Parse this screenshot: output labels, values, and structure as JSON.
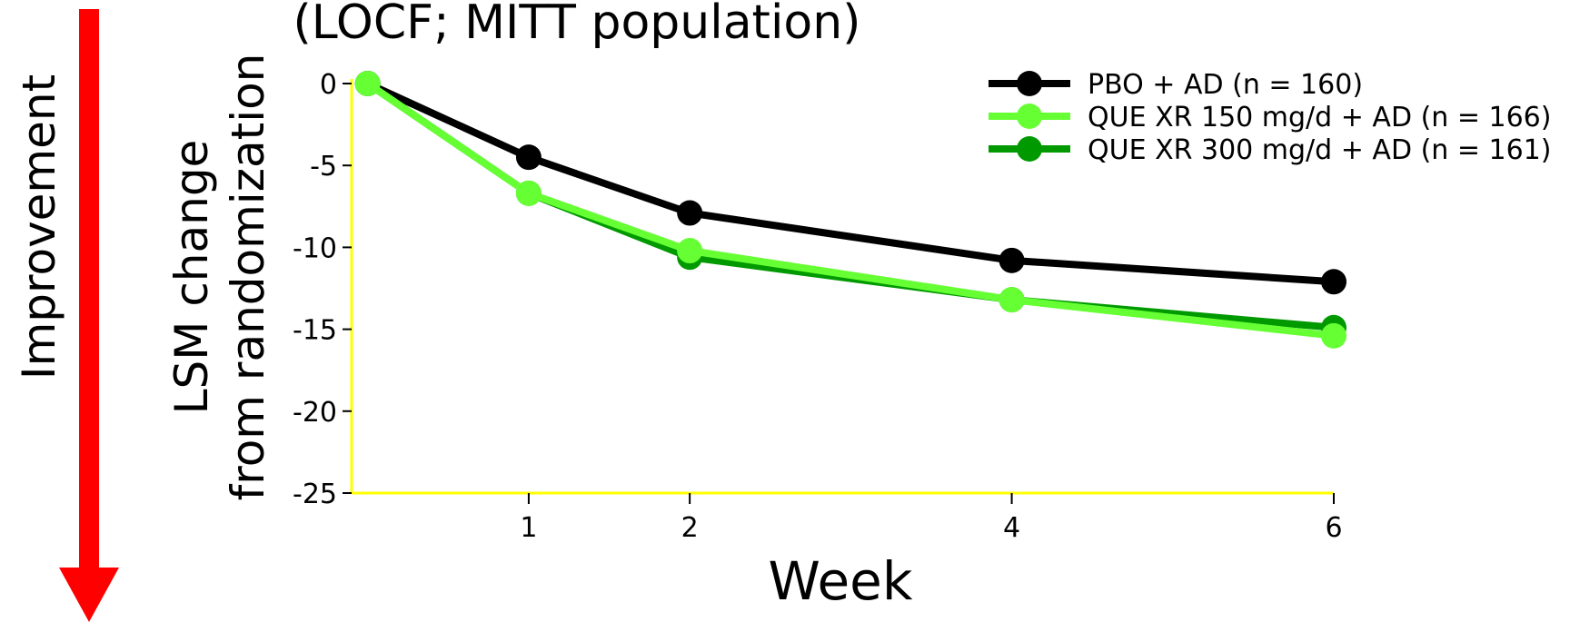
{
  "chart_data": {
    "type": "line",
    "title": "(LOCF; MITT population)",
    "xlabel": "Week",
    "ylabel_line1": "LSM change",
    "ylabel_line2": "from randomization",
    "side_label": "Improvement",
    "x": [
      0,
      1,
      2,
      4,
      6
    ],
    "xticks": [
      1,
      2,
      4,
      6
    ],
    "xlim": [
      -0.1,
      6
    ],
    "yticks": [
      0,
      -5,
      -10,
      -15,
      -20,
      -25
    ],
    "ylim": [
      -25,
      0
    ],
    "axis_color": "#ffff00",
    "arrow_color": "#ff0000",
    "series": [
      {
        "name": "PBO + AD (n = 160)",
        "color": "#000000",
        "values": [
          0,
          -4.5,
          -7.9,
          -10.8,
          -12.1
        ]
      },
      {
        "name": "QUE XR 150 mg/d + AD (n = 166)",
        "color": "#66ff33",
        "values": [
          0,
          -6.7,
          -10.2,
          -13.2,
          -15.4
        ]
      },
      {
        "name": "QUE XR 300 mg/d + AD (n = 161)",
        "color": "#009900",
        "values": [
          0,
          -6.7,
          -10.6,
          -13.2,
          -14.9
        ]
      }
    ],
    "legend_position": "top-right",
    "grid": false
  }
}
